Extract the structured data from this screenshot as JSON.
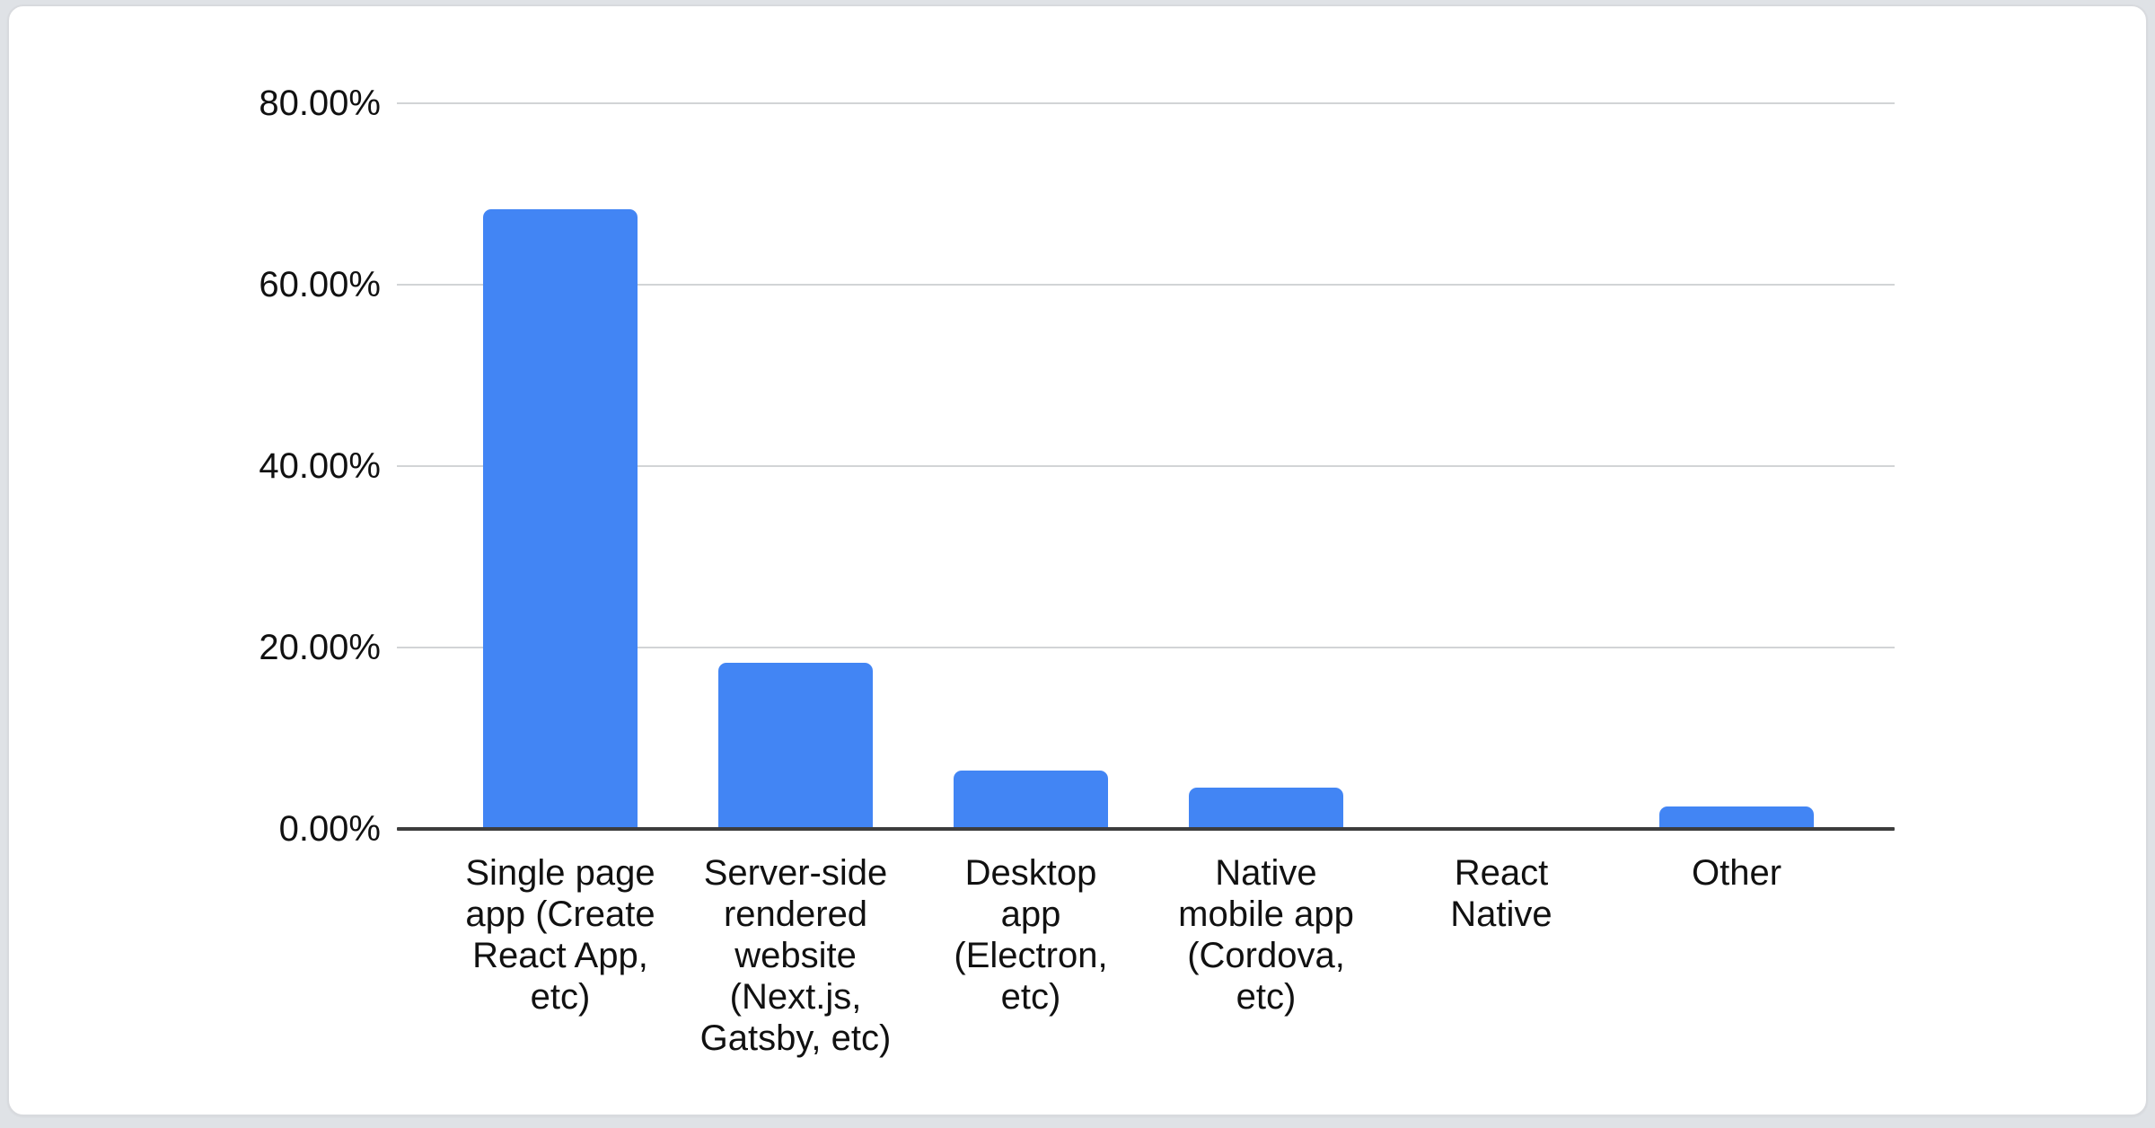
{
  "page": {
    "background_color": "#dfe2e6",
    "card_background": "#ffffff",
    "card_border_color": "#d8dade"
  },
  "chart_data": {
    "type": "bar",
    "title": "",
    "xlabel": "",
    "ylabel": "",
    "categories": [
      "Single page app (Create React App, etc)",
      "Server-side rendered website (Next.js, Gatsby, etc)",
      "Desktop app (Electron, etc)",
      "Native mobile app (Cordova, etc)",
      "React Native",
      "Other"
    ],
    "category_label_lines": [
      [
        "Single page",
        "app (Create",
        "React App,",
        "etc)"
      ],
      [
        "Server-side",
        "rendered",
        "website",
        "(Next.js,",
        "Gatsby, etc)"
      ],
      [
        "Desktop",
        "app",
        "(Electron,",
        "etc)"
      ],
      [
        "Native",
        "mobile app",
        "(Cordova,",
        "etc)"
      ],
      [
        "React",
        "Native"
      ],
      [
        "Other"
      ]
    ],
    "values": [
      68.3,
      18.3,
      6.4,
      4.6,
      0,
      2.5
    ],
    "unit": "percent",
    "ylim": [
      0,
      80
    ],
    "y_ticks": [
      {
        "value": 80,
        "label": "80.00%"
      },
      {
        "value": 60,
        "label": "60.00%"
      },
      {
        "value": 40,
        "label": "40.00%"
      },
      {
        "value": 20,
        "label": "20.00%"
      },
      {
        "value": 0,
        "label": "0.00%"
      }
    ],
    "grid": true,
    "legend_position": "none",
    "bar_color": "#4285f4",
    "axis_color": "#3d3d3d",
    "gridline_color": "#d2d4d6",
    "label_color": "#111111"
  }
}
